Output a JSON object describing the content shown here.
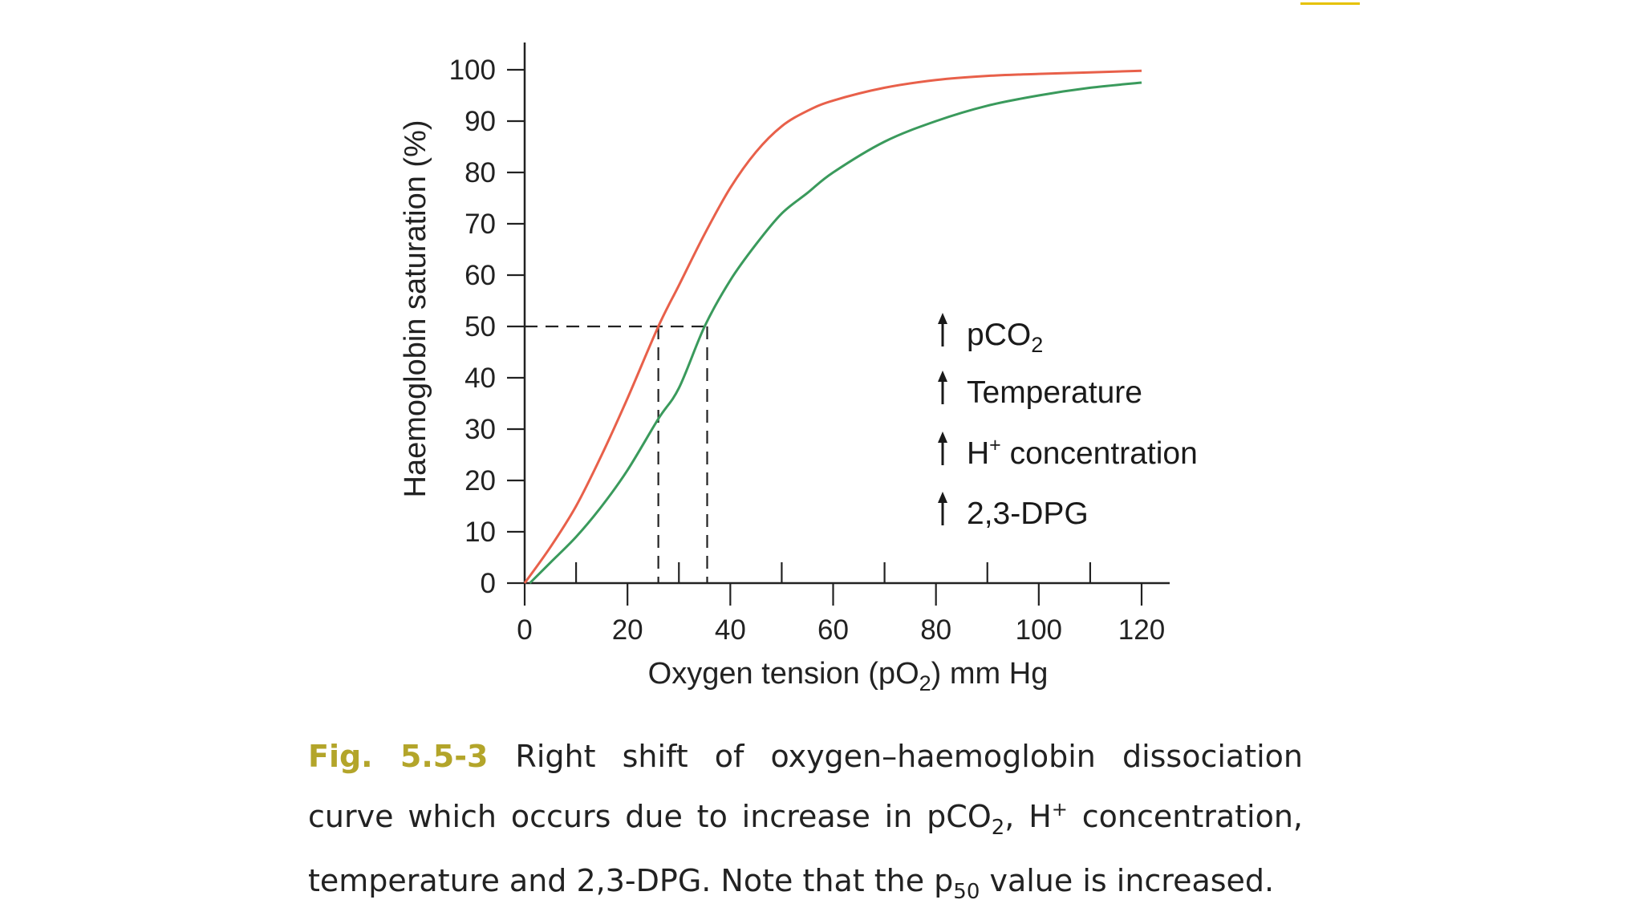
{
  "chart_data": {
    "type": "line",
    "xlabel_prefix": "Oxygen tension (pO",
    "xlabel_sub": "2",
    "xlabel_suffix": ") mm Hg",
    "ylabel": "Haemoglobin saturation (%)",
    "xlim": [
      0,
      120
    ],
    "ylim": [
      0,
      100
    ],
    "x_ticks": [
      0,
      20,
      40,
      60,
      80,
      100,
      120
    ],
    "y_ticks": [
      0,
      10,
      20,
      30,
      40,
      50,
      60,
      70,
      80,
      90,
      100
    ],
    "grid": false,
    "series": [
      {
        "color": "#e8604a",
        "x": [
          0,
          5,
          10,
          15,
          20,
          26,
          30,
          35,
          40,
          45,
          50,
          55,
          60,
          70,
          80,
          90,
          100,
          110,
          120
        ],
        "y": [
          0,
          7,
          15,
          25,
          36,
          50,
          58,
          68,
          77,
          84,
          89,
          92,
          94,
          96.5,
          98,
          98.8,
          99.2,
          99.5,
          99.8
        ]
      },
      {
        "color": "#3a9a5c",
        "x": [
          1,
          5,
          10,
          15,
          20,
          26,
          30,
          35,
          40,
          45,
          50,
          55,
          60,
          70,
          80,
          90,
          100,
          110,
          120
        ],
        "y": [
          0,
          4,
          9,
          15,
          22,
          32,
          38,
          50,
          59,
          66,
          72,
          76,
          80,
          86,
          90,
          93,
          95,
          96.5,
          97.5
        ]
      }
    ],
    "p50_markers": [
      {
        "x": 26,
        "y": 50
      },
      {
        "x": 35.5,
        "y": 50
      }
    ],
    "annotations": [
      {
        "arrow": "up",
        "text": "pCO",
        "sub": "2",
        "sup": ""
      },
      {
        "arrow": "up",
        "text": "Temperature",
        "sub": "",
        "sup": ""
      },
      {
        "arrow": "up",
        "text": "H",
        "sub": "",
        "sup": "+",
        "suffix": " concentration"
      },
      {
        "arrow": "up",
        "text": "2,3-DPG",
        "sub": "",
        "sup": ""
      }
    ]
  },
  "caption": {
    "fig_label": "Fig. 5.5-3",
    "line1_text": "Right shift of oxygen–haemoglobin dissociation",
    "line2_a": "curve which occurs due to increase in pCO",
    "line2_sub": "2",
    "line2_b": ", H",
    "line2_sup": "+",
    "line2_c": " concentration,",
    "line3_a": "temperature and 2,3-DPG. Note that the p",
    "line3_sub": "50",
    "line3_b": " value is increased."
  },
  "colors": {
    "accent_mark": "#e6c200",
    "fig_label": "#b3a52a"
  }
}
